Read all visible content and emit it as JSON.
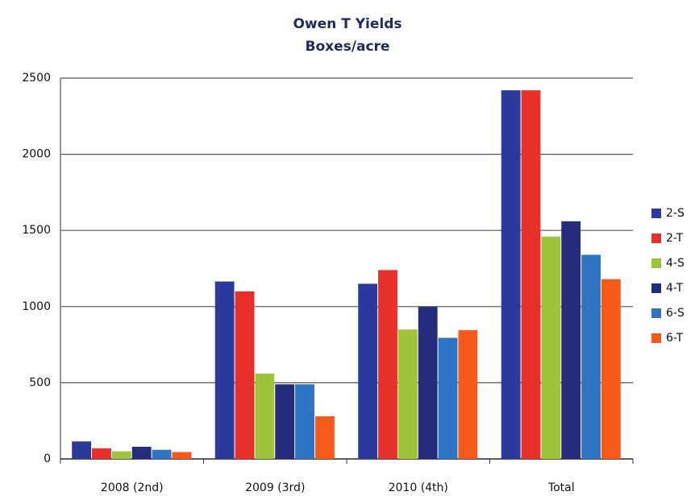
{
  "chart_data": {
    "type": "bar",
    "title": "Owen T Yields",
    "subtitle": "Boxes/acre",
    "categories": [
      "2008 (2nd)",
      "2009 (3rd)",
      "2010 (4th)",
      "Total"
    ],
    "series": [
      {
        "name": "2-S",
        "color": "#2c3a9c",
        "values": [
          115,
          1165,
          1150,
          2420
        ]
      },
      {
        "name": "2-T",
        "color": "#e8302a",
        "values": [
          70,
          1100,
          1240,
          2420
        ]
      },
      {
        "name": "4-S",
        "color": "#9dc43a",
        "values": [
          50,
          560,
          850,
          1460
        ]
      },
      {
        "name": "4-T",
        "color": "#252c7e",
        "values": [
          80,
          490,
          1000,
          1560
        ]
      },
      {
        "name": "6-S",
        "color": "#2f74c4",
        "values": [
          60,
          490,
          795,
          1340
        ]
      },
      {
        "name": "6-T",
        "color": "#f55a1a",
        "values": [
          45,
          280,
          845,
          1180
        ]
      }
    ],
    "ylim": [
      0,
      2500
    ],
    "yticks": [
      0,
      500,
      1000,
      1500,
      2000,
      2500
    ],
    "grid": true,
    "legend": "right"
  }
}
